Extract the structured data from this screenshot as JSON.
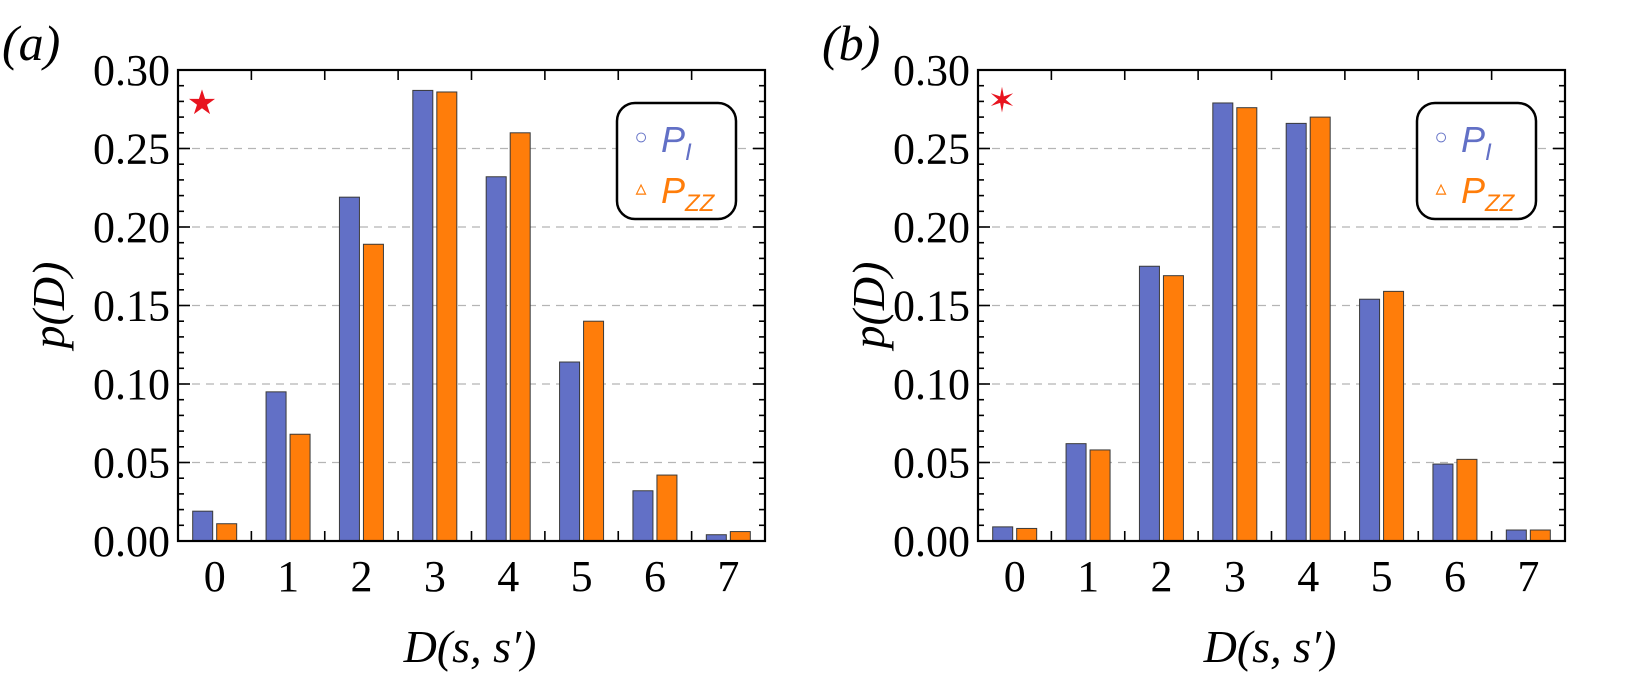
{
  "colors": {
    "series_pi": "#6270c6",
    "series_pzz": "#ff7d0a",
    "star": "#e8141f",
    "frame": "#000000",
    "grid": "#b5b5b5"
  },
  "chart_data": [
    {
      "type": "bar",
      "panel_label": "(a)",
      "marker": "★",
      "marker_icon": "filled-star-icon",
      "categories": [
        "0",
        "1",
        "2",
        "3",
        "4",
        "5",
        "6",
        "7"
      ],
      "series": [
        {
          "name": "P",
          "subscript": "I",
          "legend_symbol": "○",
          "values": [
            0.019,
            0.095,
            0.219,
            0.287,
            0.232,
            0.114,
            0.032,
            0.004
          ]
        },
        {
          "name": "P",
          "subscript": "ZZ",
          "legend_symbol": "▵",
          "values": [
            0.011,
            0.068,
            0.189,
            0.286,
            0.26,
            0.14,
            0.042,
            0.006
          ]
        }
      ],
      "ylim": [
        0,
        0.3
      ],
      "yticks": [
        "0.00",
        "0.05",
        "0.10",
        "0.15",
        "0.20",
        "0.25",
        "0.30"
      ],
      "ytick_values": [
        0,
        0.05,
        0.1,
        0.15,
        0.2,
        0.25,
        0.3
      ],
      "xlabel": "D(s, s′)",
      "ylabel": "p(D)",
      "grid": "horizontal dashed",
      "legend_position": "top-right"
    },
    {
      "type": "bar",
      "panel_label": "(b)",
      "marker": "✶",
      "marker_icon": "six-point-star-icon",
      "categories": [
        "0",
        "1",
        "2",
        "3",
        "4",
        "5",
        "6",
        "7"
      ],
      "series": [
        {
          "name": "P",
          "subscript": "I",
          "legend_symbol": "○",
          "values": [
            0.009,
            0.062,
            0.175,
            0.279,
            0.266,
            0.154,
            0.049,
            0.007
          ]
        },
        {
          "name": "P",
          "subscript": "ZZ",
          "legend_symbol": "▵",
          "values": [
            0.008,
            0.058,
            0.169,
            0.276,
            0.27,
            0.159,
            0.052,
            0.007
          ]
        }
      ],
      "ylim": [
        0,
        0.3
      ],
      "yticks": [
        "0.00",
        "0.05",
        "0.10",
        "0.15",
        "0.20",
        "0.25",
        "0.30"
      ],
      "ytick_values": [
        0,
        0.05,
        0.1,
        0.15,
        0.2,
        0.25,
        0.3
      ],
      "xlabel": "D(s, s′)",
      "ylabel": "p(D)",
      "grid": "horizontal dashed",
      "legend_position": "top-right"
    }
  ]
}
